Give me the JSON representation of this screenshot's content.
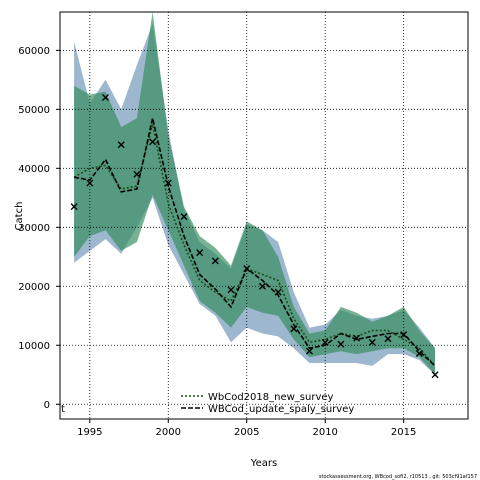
{
  "chart_data": {
    "type": "line",
    "xlabel": "Years",
    "ylabel": "Catch",
    "xlim": [
      1993.1,
      2019.1
    ],
    "ylim": [
      -2500,
      66500
    ],
    "x_ticks": [
      1995,
      2000,
      2005,
      2010,
      2015
    ],
    "y_ticks": [
      0,
      10000,
      20000,
      30000,
      40000,
      50000,
      60000
    ],
    "grid": true,
    "legend_position": "bottom-center",
    "corner_label": "t",
    "footer": "stockassessment.org, WBcod_sofi2, r10513 , git: 503cf91af157",
    "years": [
      1994,
      1995,
      1996,
      1997,
      1998,
      1999,
      2000,
      2001,
      2002,
      2003,
      2004,
      2005,
      2006,
      2007,
      2008,
      2009,
      2010,
      2011,
      2012,
      2013,
      2014,
      2015,
      2016,
      2017
    ],
    "series": [
      {
        "name": "WbCod2018_new_survey",
        "line_style": "dotted",
        "line_color": "#1a4d1a",
        "band_color": "#5b88ad",
        "values": [
          38500,
          40000,
          40500,
          36500,
          37000,
          47500,
          34000,
          27000,
          21000,
          19000,
          17500,
          23000,
          22000,
          21000,
          14500,
          10500,
          11000,
          12000,
          11500,
          12500,
          12500,
          11000,
          9500,
          6500
        ],
        "lower": [
          24000,
          26000,
          28000,
          25500,
          30000,
          35000,
          27000,
          22000,
          17000,
          15000,
          10500,
          13000,
          12000,
          11500,
          9500,
          7000,
          7000,
          7000,
          7000,
          6500,
          8500,
          8500,
          7500,
          5000
        ],
        "upper": [
          61500,
          51000,
          55000,
          50000,
          57500,
          64500,
          46500,
          33000,
          27500,
          25500,
          23000,
          30500,
          29500,
          27500,
          19000,
          13000,
          13500,
          16000,
          15000,
          14500,
          15000,
          16000,
          13000,
          9500
        ]
      },
      {
        "name": "WBCod_update_spaly_survey",
        "line_style": "dashed",
        "line_color": "#000000",
        "band_color": "#2e8b57",
        "values": [
          38500,
          38000,
          41500,
          36000,
          36500,
          48500,
          37000,
          28500,
          22000,
          19500,
          16500,
          23000,
          21000,
          18500,
          13500,
          9500,
          10000,
          12000,
          11000,
          11500,
          12000,
          12000,
          9000,
          6500
        ],
        "lower": [
          25000,
          28500,
          29500,
          26000,
          27500,
          35500,
          29500,
          23500,
          17500,
          15500,
          13000,
          16500,
          15500,
          15000,
          11000,
          8000,
          8500,
          9000,
          8500,
          9000,
          9500,
          9500,
          8000,
          5000
        ],
        "upper": [
          54000,
          52500,
          53000,
          47000,
          48500,
          66500,
          45500,
          33500,
          28500,
          26500,
          23500,
          31000,
          29500,
          25000,
          16500,
          12000,
          12500,
          16500,
          15500,
          14000,
          15000,
          16500,
          12500,
          9500
        ]
      }
    ],
    "observed": {
      "marker": "x",
      "years": [
        1994,
        1995,
        1996,
        1997,
        1998,
        1999,
        2000,
        2001,
        2002,
        2003,
        2004,
        2005,
        2006,
        2007,
        2008,
        2009,
        2010,
        2011,
        2012,
        2013,
        2014,
        2015,
        2016,
        2017
      ],
      "values": [
        33500,
        37500,
        52000,
        44000,
        39000,
        44500,
        37500,
        31800,
        25700,
        24300,
        19400,
        23000,
        20000,
        19000,
        12800,
        9000,
        10500,
        10200,
        11200,
        10500,
        11100,
        11800,
        8600,
        5000
      ]
    }
  }
}
